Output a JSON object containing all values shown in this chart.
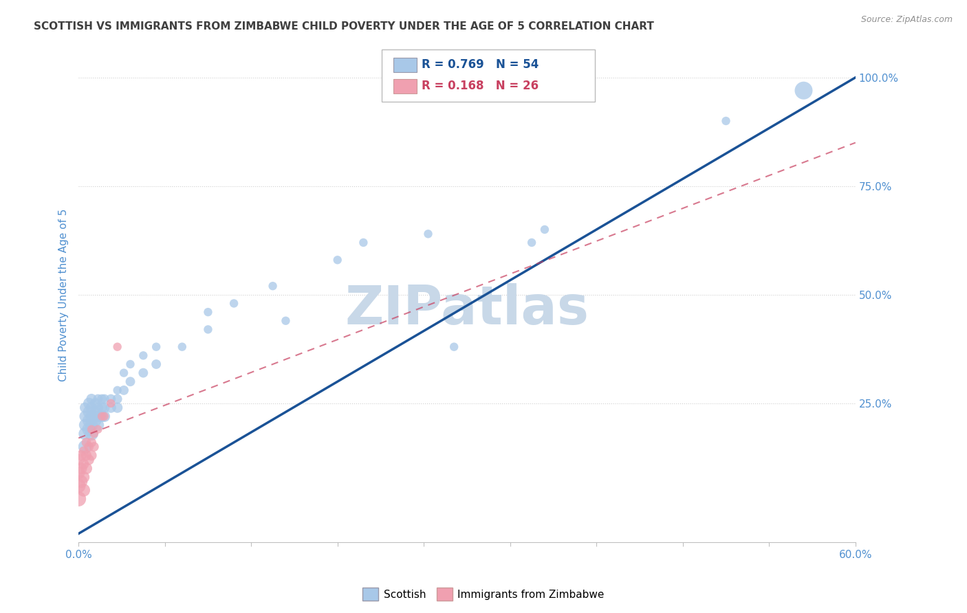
{
  "title": "SCOTTISH VS IMMIGRANTS FROM ZIMBABWE CHILD POVERTY UNDER THE AGE OF 5 CORRELATION CHART",
  "source": "Source: ZipAtlas.com",
  "ylabel": "Child Poverty Under the Age of 5",
  "ytick_labels": [
    "",
    "25.0%",
    "50.0%",
    "75.0%",
    "100.0%"
  ],
  "ytick_values": [
    0,
    0.25,
    0.5,
    0.75,
    1.0
  ],
  "xlim": [
    0,
    0.6
  ],
  "ylim": [
    -0.07,
    1.07
  ],
  "legend_labels": [
    "Scottish",
    "Immigrants from Zimbabwe"
  ],
  "R_blue": 0.769,
  "N_blue": 54,
  "R_pink": 0.168,
  "N_pink": 26,
  "blue_color": "#a8c8e8",
  "blue_line_color": "#1a5296",
  "pink_color": "#f0a0b0",
  "pink_line_color": "#c84060",
  "watermark": "ZIPatlas",
  "watermark_color": "#c8d8e8",
  "title_color": "#404040",
  "axis_label_color": "#5090d0",
  "background_color": "#ffffff",
  "blue_line": {
    "x0": 0.0,
    "y0": -0.05,
    "x1": 0.6,
    "y1": 1.0
  },
  "pink_line": {
    "x0": 0.0,
    "y0": 0.17,
    "x1": 0.6,
    "y1": 0.85
  },
  "blue_scatter_x": [
    0.005,
    0.005,
    0.005,
    0.005,
    0.005,
    0.008,
    0.008,
    0.008,
    0.008,
    0.01,
    0.01,
    0.01,
    0.01,
    0.01,
    0.013,
    0.013,
    0.013,
    0.015,
    0.015,
    0.015,
    0.015,
    0.018,
    0.018,
    0.018,
    0.02,
    0.02,
    0.02,
    0.025,
    0.025,
    0.03,
    0.03,
    0.03,
    0.035,
    0.035,
    0.04,
    0.04,
    0.05,
    0.05,
    0.06,
    0.06,
    0.08,
    0.1,
    0.1,
    0.12,
    0.15,
    0.16,
    0.2,
    0.22,
    0.27,
    0.29,
    0.35,
    0.36,
    0.5,
    0.56
  ],
  "blue_scatter_y": [
    0.15,
    0.18,
    0.2,
    0.22,
    0.24,
    0.19,
    0.21,
    0.23,
    0.25,
    0.18,
    0.2,
    0.22,
    0.24,
    0.26,
    0.21,
    0.23,
    0.25,
    0.2,
    0.22,
    0.24,
    0.26,
    0.22,
    0.24,
    0.26,
    0.22,
    0.24,
    0.26,
    0.24,
    0.26,
    0.24,
    0.26,
    0.28,
    0.28,
    0.32,
    0.3,
    0.34,
    0.32,
    0.36,
    0.34,
    0.38,
    0.38,
    0.42,
    0.46,
    0.48,
    0.52,
    0.44,
    0.58,
    0.62,
    0.64,
    0.38,
    0.62,
    0.65,
    0.9,
    0.97
  ],
  "blue_scatter_sizes": [
    200,
    180,
    160,
    140,
    120,
    200,
    180,
    160,
    140,
    200,
    180,
    160,
    140,
    120,
    160,
    140,
    120,
    160,
    140,
    120,
    100,
    140,
    120,
    100,
    140,
    120,
    100,
    120,
    100,
    120,
    100,
    80,
    100,
    80,
    100,
    80,
    100,
    80,
    100,
    80,
    80,
    80,
    80,
    80,
    80,
    80,
    80,
    80,
    80,
    80,
    80,
    80,
    80,
    350
  ],
  "pink_scatter_x": [
    0.0,
    0.0,
    0.0,
    0.0,
    0.002,
    0.002,
    0.002,
    0.004,
    0.004,
    0.004,
    0.004,
    0.006,
    0.006,
    0.006,
    0.008,
    0.008,
    0.01,
    0.01,
    0.01,
    0.012,
    0.012,
    0.015,
    0.018,
    0.02,
    0.025,
    0.03
  ],
  "pink_scatter_y": [
    0.03,
    0.06,
    0.09,
    0.12,
    0.07,
    0.1,
    0.13,
    0.05,
    0.08,
    0.11,
    0.14,
    0.1,
    0.13,
    0.16,
    0.12,
    0.15,
    0.13,
    0.16,
    0.19,
    0.15,
    0.18,
    0.19,
    0.22,
    0.22,
    0.25,
    0.38
  ],
  "pink_scatter_sizes": [
    250,
    220,
    180,
    150,
    180,
    150,
    120,
    180,
    150,
    120,
    100,
    150,
    120,
    100,
    120,
    100,
    120,
    100,
    80,
    100,
    80,
    80,
    80,
    80,
    80,
    80
  ]
}
